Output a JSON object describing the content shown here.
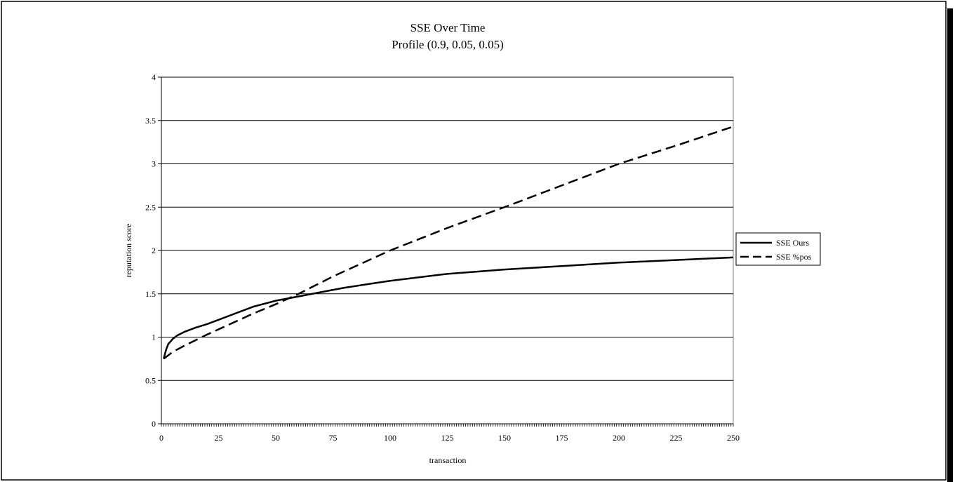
{
  "chart_data": {
    "type": "line",
    "title": "SSE Over Time",
    "subtitle": "Profile (0.9, 0.05, 0.05)",
    "xlabel": "transaction",
    "ylabel": "reputation score",
    "xlim": [
      0,
      250
    ],
    "ylim": [
      0,
      4
    ],
    "x_ticks": [
      "0",
      "25",
      "50",
      "75",
      "100",
      "125",
      "150",
      "175",
      "200",
      "225",
      "250"
    ],
    "y_ticks": [
      "0",
      "0.5",
      "1",
      "1.5",
      "2",
      "2.5",
      "3",
      "3.5",
      "4"
    ],
    "grid": "horizontal",
    "legend_position": "right",
    "series": [
      {
        "name": "SSE Ours",
        "style": "solid",
        "color": "#000000",
        "x": [
          1,
          2,
          3,
          5,
          7,
          10,
          15,
          20,
          25,
          30,
          40,
          50,
          60,
          70,
          80,
          90,
          100,
          125,
          150,
          175,
          200,
          225,
          250
        ],
        "values": [
          0.75,
          0.85,
          0.92,
          0.98,
          1.02,
          1.06,
          1.11,
          1.15,
          1.2,
          1.25,
          1.35,
          1.42,
          1.47,
          1.52,
          1.57,
          1.61,
          1.65,
          1.73,
          1.78,
          1.82,
          1.86,
          1.89,
          1.92
        ]
      },
      {
        "name": "SSE %pos",
        "style": "dashed",
        "color": "#000000",
        "x": [
          1,
          5,
          10,
          20,
          30,
          40,
          50,
          60,
          75,
          100,
          125,
          150,
          175,
          200,
          225,
          250
        ],
        "values": [
          0.75,
          0.83,
          0.9,
          1.03,
          1.15,
          1.27,
          1.38,
          1.5,
          1.7,
          2.0,
          2.26,
          2.5,
          2.75,
          3.0,
          3.21,
          3.43
        ]
      }
    ]
  }
}
